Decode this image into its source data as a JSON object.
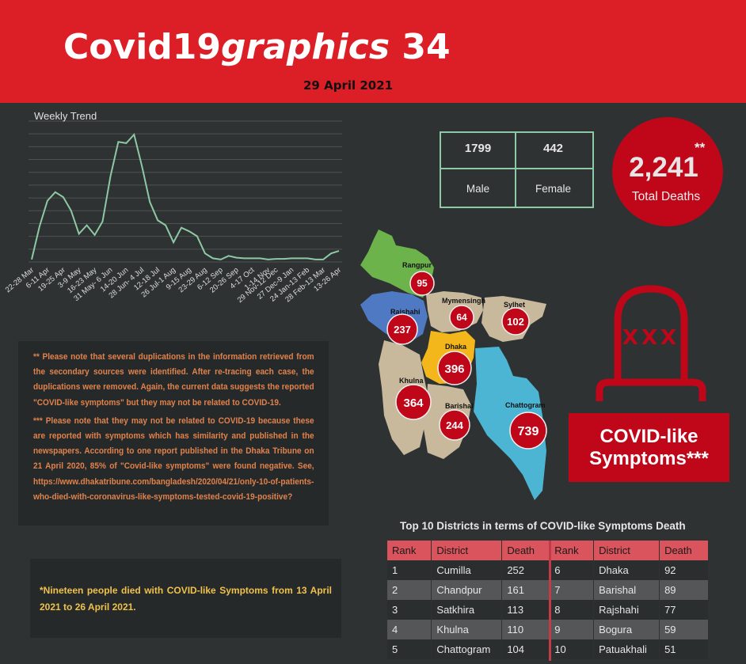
{
  "header": {
    "title_main": "Covid19",
    "title_italic": "graphics",
    "title_num": " 34",
    "date": "29 April 2021"
  },
  "chart_data": {
    "type": "line",
    "title": "Weekly Trend",
    "x": [
      "22-28 Mar",
      "",
      "6-11 Apr",
      "",
      "19-25 Apr",
      "",
      "3-9 May",
      "",
      "16-23 May",
      "",
      "31 May- 6 Jun",
      "",
      "14-20 Jun",
      "",
      "28 Jun- 4 Jul",
      "",
      "12-18 Jul",
      "",
      "26 Jul-1 Aug",
      "",
      "9-15 Aug",
      "",
      "23-29 Aug",
      "",
      "6-12 Sep",
      "",
      "20-26 Sep",
      "",
      "4-17 Oct",
      "",
      "1-14 Nov",
      "29 Nov-12 Dec",
      "",
      "27 Dec-9 Jan",
      "",
      "24 Jan-13 Feb",
      "",
      "28 Feb-13 Mar",
      "",
      "13-26 Apr"
    ],
    "values": [
      20,
      290,
      500,
      570,
      530,
      420,
      230,
      300,
      220,
      330,
      700,
      980,
      970,
      1040,
      780,
      490,
      340,
      300,
      160,
      280,
      250,
      210,
      70,
      30,
      20,
      50,
      35,
      30,
      30,
      30,
      20,
      25,
      25,
      30,
      30,
      30,
      20,
      20,
      70,
      90
    ],
    "ylim": [
      0,
      1150
    ],
    "grid": true,
    "color": "#8ec9a5"
  },
  "stats": {
    "male_count": "1799",
    "female_count": "442",
    "male_label": "Male",
    "female_label": "Female"
  },
  "total": {
    "value": "2,241",
    "stars": "**",
    "label": "Total Deaths"
  },
  "map": {
    "divisions": [
      {
        "name": "Rangpur",
        "count": "95",
        "color": "#6db34c"
      },
      {
        "name": "Rajshahi",
        "count": "237",
        "color": "#5079c4"
      },
      {
        "name": "Mymensingh",
        "count": "64",
        "color": "#c8b99c"
      },
      {
        "name": "Sylhet",
        "count": "102",
        "color": "#c8b99c"
      },
      {
        "name": "Dhaka",
        "count": "396",
        "color": "#f4b71b"
      },
      {
        "name": "Khulna",
        "count": "364",
        "color": "#c8b99c"
      },
      {
        "name": "Barishal",
        "count": "244",
        "color": "#c8b99c"
      },
      {
        "name": "Chattogram",
        "count": "739",
        "color": "#4bb5d3"
      }
    ]
  },
  "covid_box": {
    "line1": "COVID-like",
    "line2": "Symptoms***"
  },
  "notes": {
    "note1": "** Please note that several duplications in the information retrieved from the secondary sources were identified. After re-tracing each case, the duplications were removed. Again, the current data suggests the reported \"COVID-like symptoms\" but they may not be related to COVID-19.",
    "note2": "*** Please note that they may not be related to COVID-19 because these are reported with symptoms which has similarity and published in the newspapers. According to one report published in the Dhaka Tribune on 21 April 2020, 85% of \"Covid-like symptoms\" were found negative. See, https://www.dhakatribune.com/bangladesh/2020/04/21/only-10-of-patients-who-died-with-coronavirus-like-symptoms-tested-covid-19-positive?",
    "note3": "*Nineteen people died with COVID-like Symptoms from 13 April 2021 to 26 April 2021."
  },
  "table": {
    "title": "Top 10 Districts in terms of COVID-like Symptoms Death",
    "headers": [
      "Rank",
      "District",
      "Death",
      "Rank",
      "District",
      "Death"
    ],
    "rows": [
      [
        "1",
        "Cumilla",
        "252",
        "6",
        "Dhaka",
        "92"
      ],
      [
        "2",
        "Chandpur",
        "161",
        "7",
        "Barishal",
        "89"
      ],
      [
        "3",
        "Satkhira",
        "113",
        "8",
        "Rajshahi",
        "77"
      ],
      [
        "4",
        "Khulna",
        "110",
        "9",
        "Bogura",
        "59"
      ],
      [
        "5",
        "Chattogram",
        "104",
        "10",
        "Patuakhali",
        "51"
      ]
    ]
  },
  "tombstone": {
    "marks": "XXX"
  }
}
